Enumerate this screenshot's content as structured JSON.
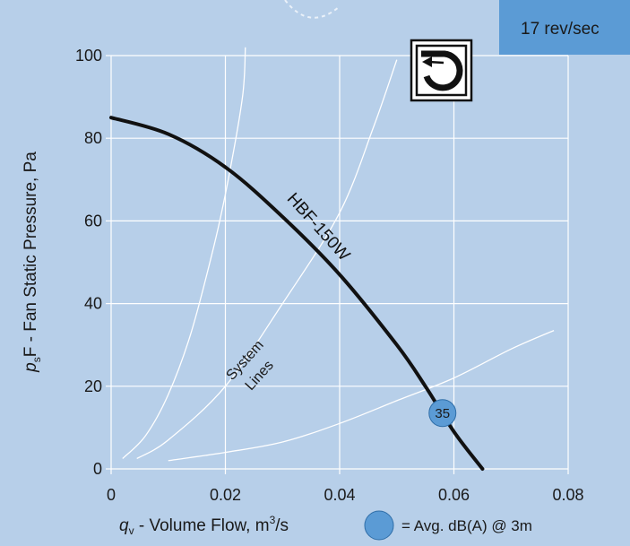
{
  "speed_badge": "17 rev/sec",
  "colors": {
    "panel": "#b7cfe9",
    "grid": "#ffffff",
    "fan_curve": "#111111",
    "system_lines": "#ffffff",
    "marker_fill": "#5b9bd5",
    "badge_fill": "#5b9bd5"
  },
  "fan_icon": "centrifugal-fan-icon",
  "chart_data": {
    "type": "line",
    "xlabel_main": "q",
    "xlabel_sub": "v",
    "xlabel_rest": " - Volume Flow, m",
    "xlabel_sup": "3",
    "xlabel_end": "/s",
    "ylabel_main": "p",
    "ylabel_sub": "s",
    "ylabel_rest": "F - Fan Static Pressure, Pa",
    "xlim": [
      0,
      0.08
    ],
    "ylim": [
      0,
      100
    ],
    "x_ticks": [
      0,
      0.02,
      0.04,
      0.06,
      0.08
    ],
    "x_tick_labels": [
      "0",
      "0.02",
      "0.04",
      "0.06",
      "0.08"
    ],
    "y_ticks": [
      0,
      20,
      40,
      60,
      80,
      100
    ],
    "y_tick_labels": [
      "0",
      "20",
      "40",
      "60",
      "80",
      "100"
    ],
    "grid": true,
    "fan_curve": {
      "name": "HBF-150W",
      "x": [
        0,
        0.01,
        0.02,
        0.03,
        0.04,
        0.05,
        0.055,
        0.06,
        0.065
      ],
      "y": [
        85,
        81,
        73,
        61,
        47,
        30,
        20,
        9,
        0
      ]
    },
    "system_lines_label": [
      "System",
      "Lines"
    ],
    "system_lines": [
      {
        "x": [
          0.002,
          0.006,
          0.01,
          0.014,
          0.018,
          0.0205,
          0.023,
          0.0235
        ],
        "y": [
          2.5,
          8,
          18,
          33,
          54,
          70,
          90,
          102
        ]
      },
      {
        "x": [
          0.0045,
          0.01,
          0.02,
          0.03,
          0.04,
          0.046,
          0.05
        ],
        "y": [
          2.5,
          7,
          20,
          40,
          62,
          83,
          99
        ]
      },
      {
        "x": [
          0.01,
          0.02,
          0.03,
          0.04,
          0.05,
          0.06,
          0.07,
          0.0775
        ],
        "y": [
          2,
          4,
          6.5,
          11,
          16.5,
          22,
          29,
          33.5
        ]
      }
    ],
    "markers": [
      {
        "x": 0.058,
        "y": 13.5,
        "label": "35"
      }
    ],
    "legend_text": "= Avg. dB(A) @ 3m"
  }
}
